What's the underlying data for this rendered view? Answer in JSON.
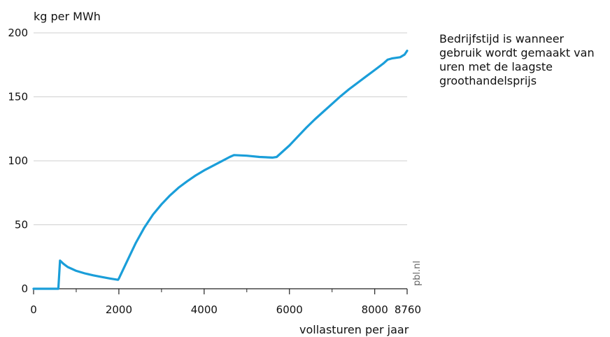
{
  "chart_data": {
    "type": "line",
    "title": "",
    "xlabel": "vollasturen per jaar",
    "ylabel": "kg per MWh",
    "xlim": [
      0,
      8760
    ],
    "ylim": [
      0,
      200
    ],
    "x_ticks": [
      {
        "value": 0,
        "label": "0"
      },
      {
        "value": 2000,
        "label": "2000"
      },
      {
        "value": 4000,
        "label": "4000"
      },
      {
        "value": 6000,
        "label": "6000"
      },
      {
        "value": 8000,
        "label": "8000"
      },
      {
        "value": 8760,
        "label": "8760"
      }
    ],
    "x_minor_ticks": [
      1000,
      3000,
      5000,
      7000
    ],
    "y_ticks": [
      0,
      50,
      100,
      150,
      200
    ],
    "grid": true,
    "series": [
      {
        "name": "",
        "color": "#1a9ed9",
        "x": [
          0,
          580,
          620,
          700,
          800,
          900,
          1000,
          1200,
          1400,
          1600,
          1800,
          1980,
          2000,
          2200,
          2400,
          2600,
          2800,
          3000,
          3200,
          3400,
          3600,
          3800,
          4000,
          4200,
          4400,
          4600,
          4700,
          5000,
          5300,
          5600,
          5700,
          5800,
          6000,
          6200,
          6400,
          6600,
          6800,
          7000,
          7200,
          7400,
          7600,
          7800,
          8000,
          8200,
          8300,
          8400,
          8500,
          8600,
          8650,
          8700,
          8760
        ],
        "y": [
          0,
          0,
          22,
          19.5,
          17,
          15.5,
          14,
          12,
          10.5,
          9.2,
          8,
          7,
          8,
          22,
          36,
          48,
          58,
          66,
          73,
          79,
          84,
          88.5,
          92.5,
          96,
          99.5,
          103,
          104.5,
          104,
          103,
          102.5,
          103,
          106,
          112,
          119,
          126,
          132.5,
          138.5,
          144.5,
          150.5,
          156,
          161,
          166,
          171,
          176,
          179,
          180,
          180.5,
          181,
          182,
          183,
          186
        ]
      }
    ],
    "annotation": "Bedrijfstijd is wanneer gebruik wordt gemaakt van uren met de laagste groothandelsprijs",
    "source": "pbl.nl"
  }
}
